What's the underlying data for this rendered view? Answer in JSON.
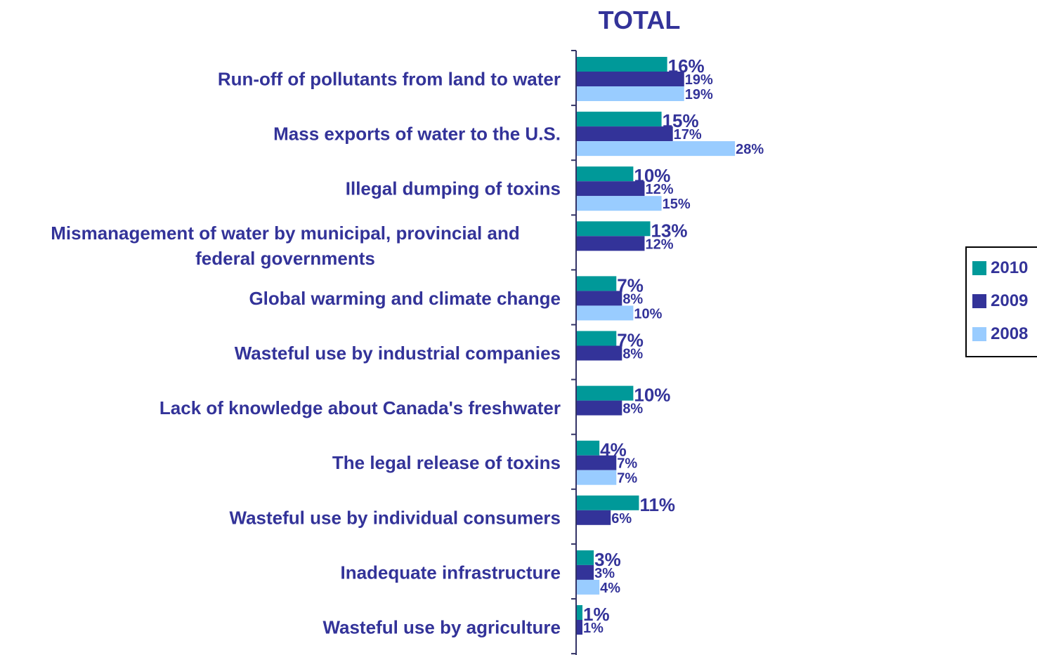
{
  "chart_data": {
    "type": "bar",
    "orientation": "horizontal",
    "title": "TOTAL",
    "categories": [
      "Run-off of pollutants from land to water",
      "Mass exports of water to the U.S.",
      "Illegal dumping of toxins",
      "Mismanagement of water by municipal, provincial and federal governments",
      "Global warming and climate change",
      "Wasteful use by industrial companies",
      "Lack of knowledge about Canada's freshwater",
      "The legal release of toxins",
      "Wasteful use by individual consumers",
      "Inadequate infrastructure",
      "Wasteful use by agriculture"
    ],
    "category_lines": [
      [
        "Run-off of pollutants from land to water"
      ],
      [
        "Mass exports of water to the U.S."
      ],
      [
        "Illegal dumping of toxins"
      ],
      [
        "Mismanagement of water by municipal, provincial and",
        "federal governments"
      ],
      [
        "Global warming and climate change"
      ],
      [
        "Wasteful use by industrial companies"
      ],
      [
        "Lack of knowledge about Canada's freshwater"
      ],
      [
        "The legal release of toxins"
      ],
      [
        "Wasteful use by individual consumers"
      ],
      [
        "Inadequate infrastructure"
      ],
      [
        "Wasteful use by agriculture"
      ]
    ],
    "series": [
      {
        "name": "2010",
        "color": "#009999",
        "values": [
          16,
          15,
          10,
          13,
          7,
          7,
          10,
          4,
          11,
          3,
          1
        ]
      },
      {
        "name": "2009",
        "color": "#333399",
        "values": [
          19,
          17,
          12,
          12,
          8,
          8,
          8,
          7,
          6,
          3,
          1
        ]
      },
      {
        "name": "2008",
        "color": "#99CCFF",
        "values": [
          19,
          28,
          15,
          null,
          10,
          null,
          null,
          7,
          null,
          4,
          null
        ]
      }
    ],
    "value_suffix": "%",
    "xlim": [
      0,
      100
    ],
    "legend_position": "right",
    "grid": false,
    "label_color": "#333399"
  }
}
